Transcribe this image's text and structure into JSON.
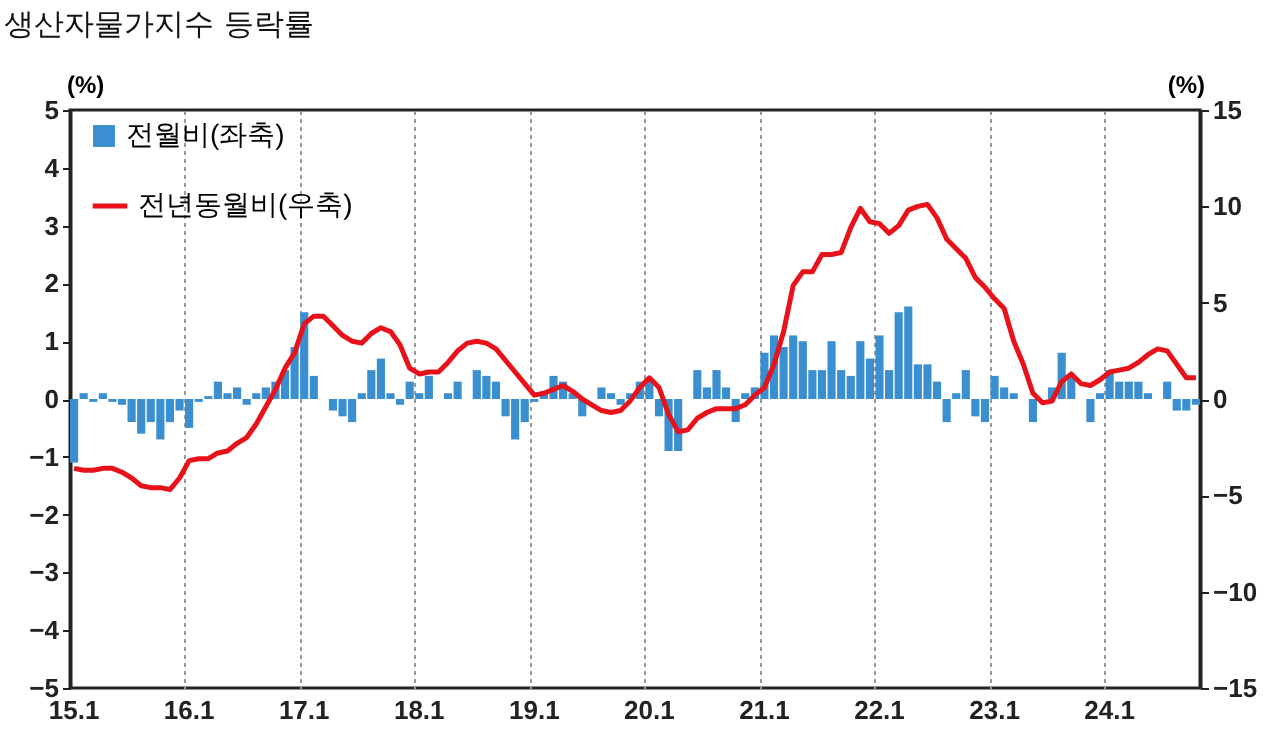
{
  "chart_data": {
    "type": "bar",
    "title": "생산자물가지수  등락률",
    "ylabel": "(%)",
    "y2label": "(%)",
    "categories": [
      "15.1",
      null,
      null,
      null,
      null,
      null,
      null,
      null,
      null,
      null,
      null,
      null,
      "16.1",
      null,
      null,
      null,
      null,
      null,
      null,
      null,
      null,
      null,
      null,
      null,
      "17.1",
      null,
      null,
      null,
      null,
      null,
      null,
      null,
      null,
      null,
      null,
      null,
      "18.1",
      null,
      null,
      null,
      null,
      null,
      null,
      null,
      null,
      null,
      null,
      null,
      "19.1",
      null,
      null,
      null,
      null,
      null,
      null,
      null,
      null,
      null,
      null,
      null,
      "20.1",
      null,
      null,
      null,
      null,
      null,
      null,
      null,
      null,
      null,
      null,
      null,
      "21.1",
      null,
      null,
      null,
      null,
      null,
      null,
      null,
      null,
      null,
      null,
      null,
      "22.1",
      null,
      null,
      null,
      null,
      null,
      null,
      null,
      null,
      null,
      null,
      null,
      "23.1",
      null,
      null,
      null,
      null,
      null,
      null,
      null,
      null,
      null,
      null,
      null,
      "24.1",
      null,
      null,
      null,
      null,
      null,
      null,
      null,
      null,
      null
    ],
    "series": [
      {
        "name": "전월비(좌축)",
        "color": "#3a8fd0",
        "values": [
          -1.1,
          0.1,
          -0.05,
          0.1,
          -0.05,
          -0.1,
          -0.4,
          -0.6,
          -0.4,
          -0.7,
          -0.4,
          -0.2,
          -0.5,
          -0.05,
          0.05,
          0.3,
          0.1,
          0.2,
          -0.1,
          0.1,
          0.2,
          0.3,
          0.5,
          0.9,
          1.5,
          0.4,
          0,
          -0.2,
          -0.3,
          -0.4,
          0.1,
          0.5,
          0.7,
          0.1,
          -0.1,
          0.3,
          0.1,
          0.4,
          0,
          0.1,
          0.3,
          0,
          0.5,
          0.4,
          0.3,
          -0.3,
          -0.7,
          -0.4,
          -0.05,
          0.1,
          0.4,
          0.3,
          0.1,
          -0.3,
          0,
          0.2,
          0.1,
          -0.1,
          0.1,
          0.3,
          0.3,
          -0.3,
          -0.9,
          -0.9,
          0,
          0.5,
          0.2,
          0.5,
          0.2,
          -0.4,
          0.1,
          0.2,
          0.8,
          1.1,
          0.9,
          1.1,
          1.0,
          0.5,
          0.5,
          1.0,
          0.5,
          0.4,
          1.0,
          0.7,
          1.1,
          0.5,
          1.5,
          1.6,
          0.6,
          0.6,
          0.3,
          -0.4,
          0.1,
          0.5,
          -0.3,
          -0.4,
          0.4,
          0.2,
          0.1,
          0,
          -0.4,
          null,
          0.2,
          0.8,
          0.4,
          0,
          -0.4,
          0.1,
          0.5,
          0.3,
          0.3,
          0.3,
          0.1,
          0,
          0.3,
          -0.2,
          -0.2,
          -0.1
        ]
      },
      {
        "name": "전년동월비(우축)",
        "type": "line",
        "axis": "y2",
        "color": "#e8121a",
        "values": [
          -3.6,
          -3.7,
          -3.7,
          -3.6,
          -3.6,
          -3.8,
          -4.1,
          -4.5,
          -4.6,
          -4.6,
          -4.7,
          -4.1,
          -3.2,
          -3.1,
          -3.1,
          -2.8,
          -2.7,
          -2.3,
          -2.0,
          -1.3,
          -0.4,
          0.5,
          1.6,
          2.4,
          3.9,
          4.3,
          4.3,
          3.8,
          3.3,
          3.0,
          2.9,
          3.4,
          3.7,
          3.5,
          2.8,
          1.6,
          1.3,
          1.4,
          1.4,
          1.9,
          2.5,
          2.9,
          3.0,
          2.9,
          2.6,
          2.0,
          1.4,
          0.8,
          0.2,
          0.3,
          0.5,
          0.7,
          0.4,
          0.0,
          -0.3,
          -0.6,
          -0.7,
          -0.6,
          -0.1,
          0.6,
          1.1,
          0.6,
          -0.8,
          -1.7,
          -1.6,
          -1.0,
          -0.7,
          -0.5,
          -0.5,
          -0.5,
          -0.3,
          0.2,
          0.6,
          1.8,
          3.5,
          5.9,
          6.6,
          6.6,
          7.5,
          7.5,
          7.6,
          8.9,
          9.9,
          9.2,
          9.1,
          8.6,
          9.0,
          9.8,
          10.0,
          10.1,
          9.4,
          8.3,
          7.8,
          7.3,
          6.3,
          5.8,
          5.2,
          4.7,
          3.0,
          1.8,
          0.3,
          -0.2,
          -0.1,
          0.9,
          1.3,
          0.8,
          0.7,
          1.0,
          1.4,
          1.5,
          1.6,
          1.9,
          2.3,
          2.6,
          2.5,
          1.8,
          1.1,
          1.1
        ]
      }
    ],
    "ylim": [
      -5,
      5
    ],
    "yticks": [
      -5,
      -4,
      -3,
      -2,
      -1,
      0,
      1,
      2,
      3,
      4,
      5
    ],
    "y2lim": [
      -15,
      15
    ],
    "y2ticks": [
      -15,
      -10,
      -5,
      0,
      5,
      10,
      15
    ],
    "grid": "x",
    "legend": "top left",
    "marker": "none"
  }
}
